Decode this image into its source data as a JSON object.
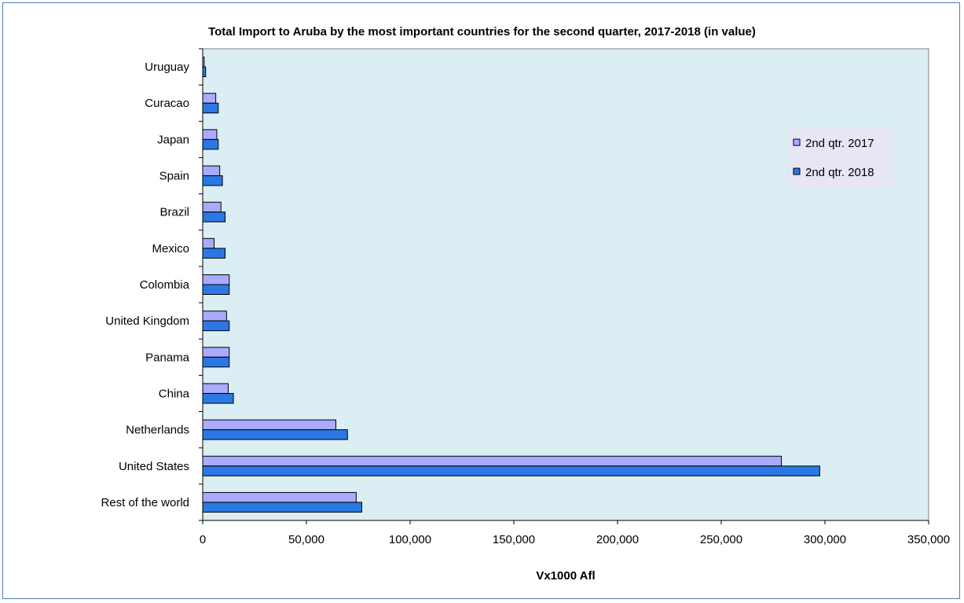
{
  "chart_data": {
    "type": "bar",
    "orientation": "horizontal",
    "title": "Total Import to Aruba  by the most important countries for the second quarter, 2017-2018 (in value)",
    "xlabel": "Vx1000 Afl",
    "ylabel": "",
    "categories": [
      "Uruguay",
      "Curacao",
      "Japan",
      "Spain",
      "Brazil",
      "Mexico",
      "Colombia",
      "United Kingdom",
      "Panama",
      "China",
      "Netherlands",
      "United States",
      "Rest of the world"
    ],
    "series": [
      {
        "name": "2nd qtr. 2017",
        "values": [
          700,
          6300,
          6800,
          8200,
          8800,
          5500,
          12800,
          11500,
          12800,
          12300,
          64200,
          279000,
          74000
        ],
        "color": "#aaaaff"
      },
      {
        "name": "2nd qtr. 2018",
        "values": [
          1400,
          7500,
          7500,
          9500,
          10800,
          10800,
          12800,
          12800,
          12800,
          14800,
          69800,
          297500,
          76700
        ],
        "color": "#2b78e4"
      }
    ],
    "xlim": [
      0,
      350000
    ],
    "xticks": [
      0,
      50000,
      100000,
      150000,
      200000,
      250000,
      300000,
      350000
    ],
    "xtick_labels": [
      "0",
      "50,000",
      "100,000",
      "150,000",
      "200,000",
      "250,000",
      "300,000",
      "350,000"
    ],
    "plot_background": "#daeef3",
    "grid": false,
    "legend": "top-right"
  }
}
